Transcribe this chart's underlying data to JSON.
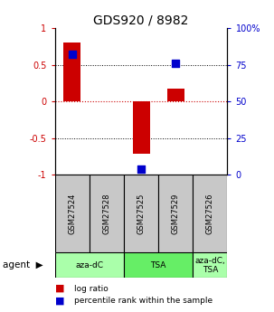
{
  "title": "GDS920 / 8982",
  "samples": [
    "GSM27524",
    "GSM27528",
    "GSM27525",
    "GSM27529",
    "GSM27526"
  ],
  "log_ratios": [
    0.8,
    0.0,
    -0.72,
    0.18,
    0.0
  ],
  "percentile_ranks": [
    0.82,
    null,
    0.04,
    0.76,
    null
  ],
  "ylim": [
    -1,
    1
  ],
  "y_left_ticks": [
    -1,
    -0.5,
    0,
    0.5,
    1
  ],
  "y_left_labels": [
    "-1",
    "-0.5",
    "0",
    "0.5",
    "1"
  ],
  "y_right_labels": [
    "0",
    "25",
    "50",
    "75",
    "100%"
  ],
  "agent_groups": [
    {
      "label": "aza-dC",
      "start": 0,
      "end": 2,
      "color": "#aaffaa"
    },
    {
      "label": "TSA",
      "start": 2,
      "end": 4,
      "color": "#66ee66"
    },
    {
      "label": "aza-dC,\nTSA",
      "start": 4,
      "end": 5,
      "color": "#aaffaa"
    }
  ],
  "bar_color": "#cc0000",
  "dot_color": "#0000cc",
  "bar_width": 0.5,
  "dot_size": 30,
  "legend_bar_label": "log ratio",
  "legend_dot_label": "percentile rank within the sample",
  "background_color": "#ffffff"
}
